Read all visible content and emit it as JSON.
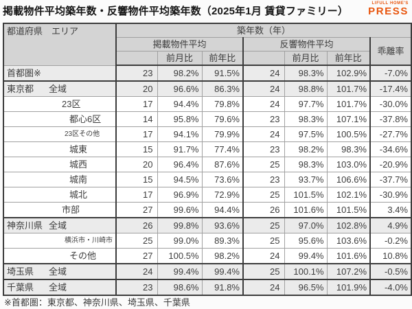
{
  "page": {
    "title": "掲載物件平均築年数・反響物件平均築年数（2025年1月 賃貸ファミリー）",
    "footnote": "※首都圏：東京都、神奈川県、埼玉県、千葉県"
  },
  "logo": {
    "brand_top": "LIFULL HOME'S",
    "brand_main": "PRESS",
    "color": "#e8540c"
  },
  "header": {
    "pref_area": "都道府県　エリア",
    "age_years": "築年数（年）",
    "listed_avg": "掲載物件平均",
    "response_avg": "反響物件平均",
    "mom": "前月比",
    "yoy": "前年比",
    "divergence": "乖離率"
  },
  "chart_data": {
    "type": "table",
    "title": "掲載物件平均築年数・反響物件平均築年数（2025年1月 賃貸ファミリー）",
    "columns": [
      "都道府県 エリア",
      "掲載物件平均 築年数（年）",
      "掲載 前月比",
      "掲載 前年比",
      "反響物件平均 築年数（年）",
      "反響 前月比",
      "反響 前年比",
      "乖離率"
    ],
    "rows": [
      {
        "pref": "首都圏※",
        "area": "",
        "level": 0,
        "shaded": true,
        "group_end": true,
        "small": false,
        "values": [
          "23",
          "98.2%",
          "91.5%",
          "24",
          "98.3%",
          "102.9%",
          "-7.0%"
        ]
      },
      {
        "pref": "東京都",
        "area": "全域",
        "level": 1,
        "shaded": true,
        "group_end": false,
        "small": false,
        "values": [
          "20",
          "96.6%",
          "86.3%",
          "24",
          "98.8%",
          "101.7%",
          "-17.4%"
        ]
      },
      {
        "pref": "",
        "area": "23区",
        "level": 2,
        "shaded": false,
        "group_end": false,
        "small": false,
        "values": [
          "17",
          "94.4%",
          "79.8%",
          "24",
          "97.7%",
          "101.7%",
          "-30.0%"
        ]
      },
      {
        "pref": "",
        "area": "都心6区",
        "level": 3,
        "shaded": false,
        "group_end": false,
        "small": false,
        "values": [
          "14",
          "95.8%",
          "79.6%",
          "23",
          "98.3%",
          "107.1%",
          "-37.8%"
        ]
      },
      {
        "pref": "",
        "area": "23区その他",
        "level": 3,
        "shaded": false,
        "group_end": false,
        "small": true,
        "values": [
          "17",
          "94.1%",
          "79.9%",
          "24",
          "97.5%",
          "100.5%",
          "-27.7%"
        ]
      },
      {
        "pref": "",
        "area": "城東",
        "level": 3,
        "shaded": false,
        "group_end": false,
        "small": false,
        "values": [
          "15",
          "91.7%",
          "77.4%",
          "23",
          "98.2%",
          "98.3%",
          "-34.6%"
        ]
      },
      {
        "pref": "",
        "area": "城西",
        "level": 3,
        "shaded": false,
        "group_end": false,
        "small": false,
        "values": [
          "20",
          "96.4%",
          "87.6%",
          "25",
          "98.3%",
          "103.0%",
          "-20.9%"
        ]
      },
      {
        "pref": "",
        "area": "城南",
        "level": 3,
        "shaded": false,
        "group_end": false,
        "small": false,
        "values": [
          "15",
          "94.5%",
          "73.6%",
          "23",
          "93.7%",
          "106.6%",
          "-37.7%"
        ]
      },
      {
        "pref": "",
        "area": "城北",
        "level": 3,
        "shaded": false,
        "group_end": false,
        "small": false,
        "values": [
          "17",
          "96.9%",
          "72.9%",
          "25",
          "101.5%",
          "102.1%",
          "-30.9%"
        ]
      },
      {
        "pref": "",
        "area": "市部",
        "level": 2,
        "shaded": false,
        "group_end": true,
        "small": false,
        "values": [
          "27",
          "99.6%",
          "94.4%",
          "26",
          "101.6%",
          "101.5%",
          "3.4%"
        ]
      },
      {
        "pref": "神奈川県",
        "area": "全域",
        "level": 1,
        "shaded": true,
        "group_end": false,
        "small": false,
        "values": [
          "26",
          "99.8%",
          "93.6%",
          "25",
          "97.0%",
          "102.8%",
          "4.9%"
        ]
      },
      {
        "pref": "",
        "area": "横浜市・川崎市",
        "level": 3,
        "shaded": false,
        "group_end": false,
        "small": true,
        "values": [
          "25",
          "99.0%",
          "89.3%",
          "25",
          "95.6%",
          "103.6%",
          "-0.2%"
        ]
      },
      {
        "pref": "",
        "area": "その他",
        "level": 3,
        "shaded": false,
        "group_end": true,
        "small": false,
        "values": [
          "27",
          "100.5%",
          "98.2%",
          "24",
          "99.4%",
          "101.6%",
          "10.8%"
        ]
      },
      {
        "pref": "埼玉県",
        "area": "全域",
        "level": 1,
        "shaded": true,
        "group_end": true,
        "small": false,
        "values": [
          "24",
          "99.4%",
          "99.4%",
          "25",
          "100.1%",
          "107.2%",
          "-0.5%"
        ]
      },
      {
        "pref": "千葉県",
        "area": "全域",
        "level": 1,
        "shaded": true,
        "group_end": false,
        "small": false,
        "values": [
          "23",
          "98.6%",
          "91.8%",
          "24",
          "96.5%",
          "101.9%",
          "-4.0%"
        ]
      }
    ]
  }
}
